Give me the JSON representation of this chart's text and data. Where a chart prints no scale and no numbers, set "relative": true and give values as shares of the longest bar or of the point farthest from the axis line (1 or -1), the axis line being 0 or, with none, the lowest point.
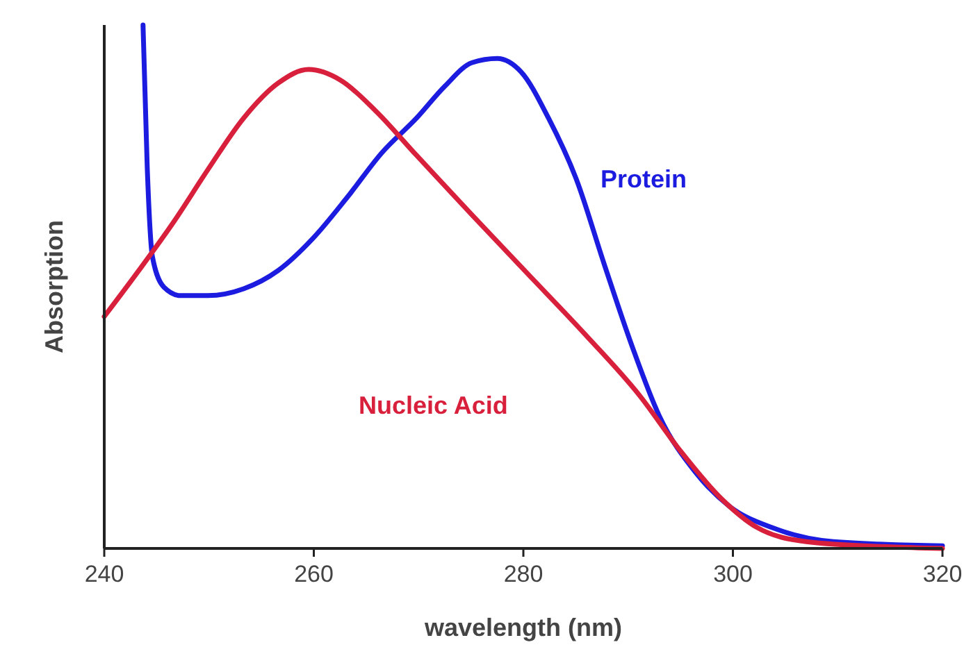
{
  "chart_data": {
    "type": "line",
    "xlabel": "wavelength (nm)",
    "ylabel": "Absorption",
    "relative": true,
    "xlim": [
      240,
      320
    ],
    "xticks": [
      240,
      260,
      280,
      300,
      320
    ],
    "grid": false,
    "legend": false,
    "series": [
      {
        "name": "Protein",
        "color": "#1c1ce0",
        "x": [
          243.7,
          244.1,
          244.6,
          245.7,
          247.3,
          249.9,
          253.3,
          256.6,
          259.9,
          263.2,
          266.5,
          269.8,
          272.5,
          275.1,
          277.5,
          279.8,
          282.4,
          285.1,
          287.7,
          290.4,
          293,
          296.4,
          299.7,
          303.7,
          309.6,
          320
        ],
        "values": [
          1,
          0.729,
          0.557,
          0.499,
          0.483,
          0.483,
          0.496,
          0.531,
          0.592,
          0.671,
          0.756,
          0.822,
          0.883,
          0.928,
          0.936,
          0.91,
          0.822,
          0.703,
          0.544,
          0.385,
          0.252,
          0.146,
          0.08,
          0.04,
          0.013,
          0.005
        ]
      },
      {
        "name": "Nucleic Acid",
        "color": "#d8203c",
        "x": [
          240,
          243.3,
          246.6,
          249.9,
          253.3,
          256.6,
          259.5,
          262.6,
          265.9,
          269.8,
          275.1,
          280.4,
          285.8,
          291.1,
          295,
          299,
          302.3,
          307,
          315,
          320
        ],
        "values": [
          0.443,
          0.531,
          0.623,
          0.724,
          0.822,
          0.889,
          0.915,
          0.894,
          0.836,
          0.751,
          0.637,
          0.525,
          0.411,
          0.292,
          0.186,
          0.093,
          0.04,
          0.013,
          0.003,
          0
        ]
      }
    ]
  }
}
